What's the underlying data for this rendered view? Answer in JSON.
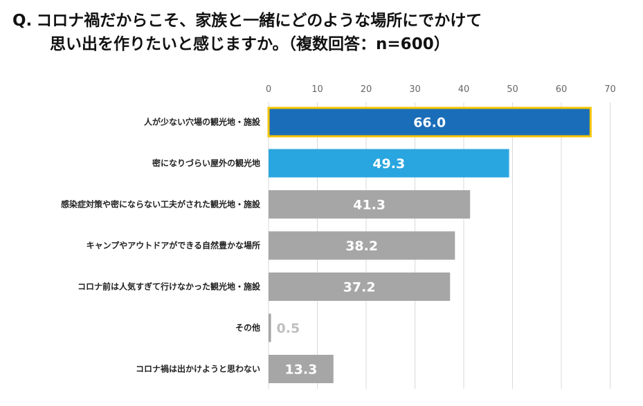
{
  "title": {
    "q": "Q.",
    "line1": "コロナ禍だからこそ、家族と一緒にどのような場所にでかけて",
    "line2": "思い出を作りたいと感じますか。（複数回答：n=600）"
  },
  "chart_data": {
    "type": "bar",
    "orientation": "horizontal",
    "title": "Q. コロナ禍だからこそ、家族と一緒にどのような場所にでかけて思い出を作りたいと感じますか。（複数回答：n=600）",
    "xlim": [
      0,
      70
    ],
    "xticks": [
      0,
      10,
      20,
      30,
      40,
      50,
      60,
      70
    ],
    "grid": true,
    "categories": [
      "人が少ない穴場の観光地・施設",
      "密になりづらい屋外の観光地",
      "感染症対策や密にならない工夫がされた観光地・施設",
      "キャンプやアウトドアができる自然豊かな場所",
      "コロナ前は人気すぎて行けなかった観光地・施設",
      "その他",
      "コロナ禍は出かけようと思わない"
    ],
    "values": [
      66.0,
      49.3,
      41.3,
      38.2,
      37.2,
      0.5,
      13.3
    ],
    "value_labels": [
      "66.0",
      "49.3",
      "41.3",
      "38.2",
      "37.2",
      "0.5",
      "13.3"
    ],
    "colors": [
      "#1a6db8",
      "#29a6e0",
      "#a6a6a6",
      "#a6a6a6",
      "#a6a6a6",
      "#a6a6a6",
      "#a6a6a6"
    ],
    "highlight_border": "#f5c400",
    "label_color": "#ffffff",
    "outside_label_color": "#bfbfbf"
  }
}
